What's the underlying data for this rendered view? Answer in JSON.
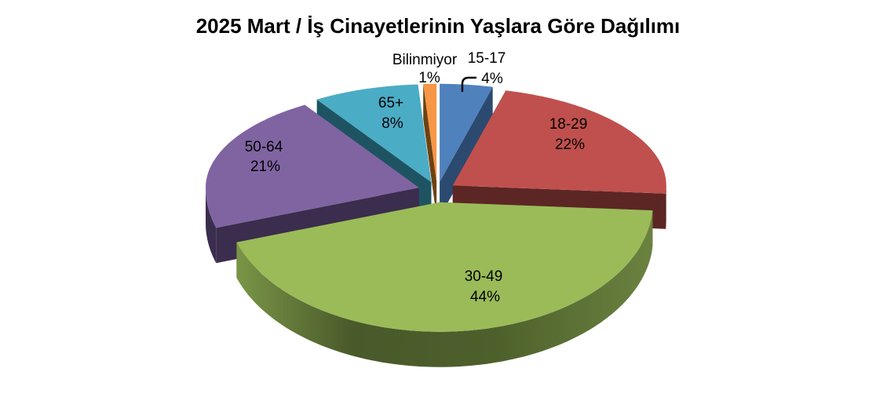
{
  "title": "2025 Mart / İş Cinayetlerinin Yaşlara Göre Dağılımı",
  "chart_data": {
    "type": "pie",
    "style": "3d-exploded",
    "title": "2025 Mart / İş Cinayetlerinin Yaşlara Göre Dağılımı",
    "unit": "%",
    "start_angle_deg": 0,
    "direction": "clockwise",
    "background": "#FFFFFF",
    "text_color": "#000000",
    "slices": [
      {
        "label": "15-17",
        "value": 4,
        "pct_label": "4%",
        "color": "#4F81BD",
        "side_color": "#2C4A70",
        "label_placement": "outside",
        "leader": true
      },
      {
        "label": "18-29",
        "value": 22,
        "pct_label": "22%",
        "color": "#C0504D",
        "side_color": "#5C2625",
        "label_placement": "inside",
        "leader": false
      },
      {
        "label": "30-49",
        "value": 44,
        "pct_label": "44%",
        "color": "#9BBB59",
        "side_color": "#4D602B",
        "label_placement": "inside",
        "leader": false
      },
      {
        "label": "50-64",
        "value": 21,
        "pct_label": "21%",
        "color": "#8064A2",
        "side_color": "#3B2D4D",
        "label_placement": "inside",
        "leader": false
      },
      {
        "label": "65+",
        "value": 8,
        "pct_label": "8%",
        "color": "#4BACC6",
        "side_color": "#1E5462",
        "label_placement": "inside",
        "leader": false
      },
      {
        "label": "Bilinmiyor",
        "value": 1,
        "pct_label": "1%",
        "color": "#F79646",
        "side_color": "#6D4213",
        "label_placement": "outside",
        "leader": false
      }
    ]
  }
}
